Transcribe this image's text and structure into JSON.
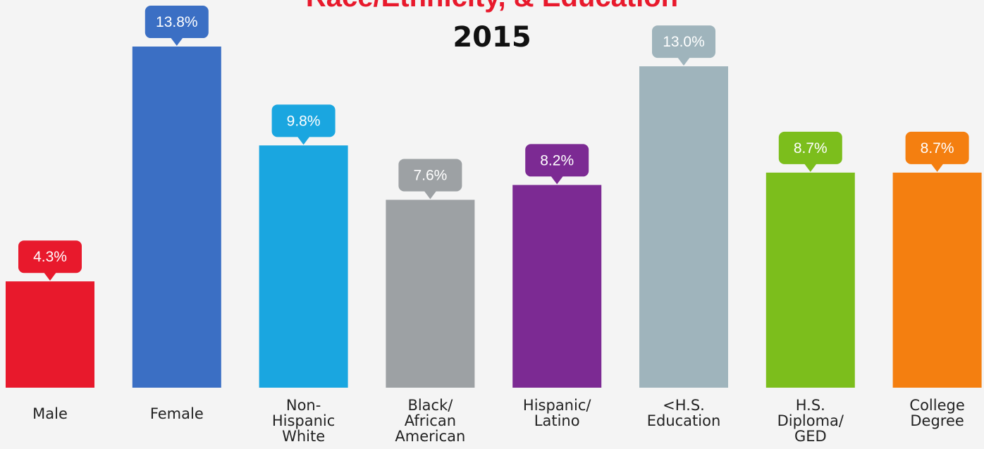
{
  "chart_data": {
    "type": "bar",
    "title": "Race/Ethnicity, & Education",
    "subtitle": "2015",
    "categories": [
      "Male",
      "Female",
      "Non-Hispanic White",
      "Black/African American",
      "Hispanic/Latino",
      "<H.S. Education",
      "H.S. Diploma/GED",
      "College Degree"
    ],
    "category_lines": [
      [
        "Male"
      ],
      [
        "Female"
      ],
      [
        "Non-",
        "Hispanic",
        "White"
      ],
      [
        "Black/",
        "African",
        "American"
      ],
      [
        "Hispanic/",
        "Latino"
      ],
      [
        "<H.S.",
        "Education"
      ],
      [
        "H.S.",
        "Diploma/",
        "GED"
      ],
      [
        "College",
        "Degree"
      ]
    ],
    "values": [
      4.3,
      13.8,
      9.8,
      7.6,
      8.2,
      13.0,
      8.7,
      8.7
    ],
    "data_labels": [
      "4.3%",
      "13.8%",
      "9.8%",
      "7.6%",
      "8.2%",
      "13.0%",
      "8.7%",
      "8.7%"
    ],
    "colors": [
      "#e8192c",
      "#3b6fc4",
      "#1aa6e0",
      "#9da1a4",
      "#7c2a93",
      "#9fb4bc",
      "#7cbe1c",
      "#f47f10"
    ],
    "ylim": [
      0,
      14
    ],
    "grid": false,
    "legend": "none"
  }
}
